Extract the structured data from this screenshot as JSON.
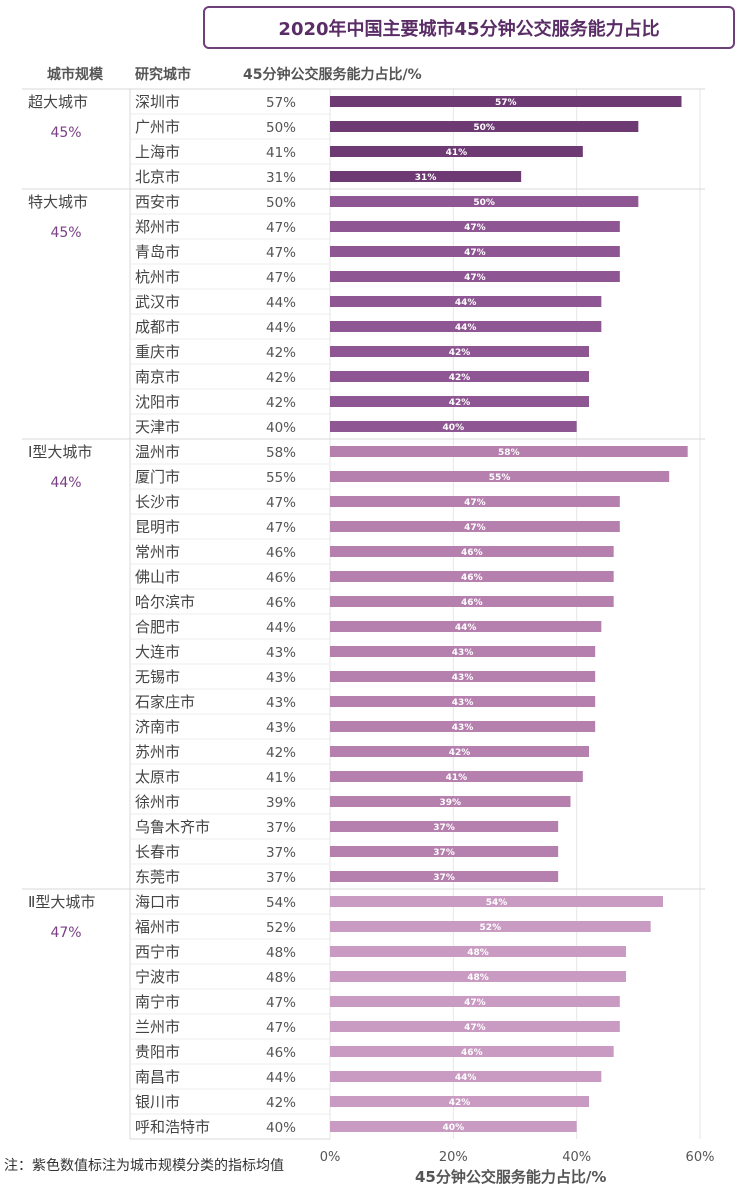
{
  "chart_data": {
    "type": "bar",
    "orientation": "horizontal",
    "title": "2020年中国主要城市45分钟公交服务能力占比",
    "column_headers": {
      "group": "城市规模",
      "city": "研究城市",
      "value": "45分钟公交服务能力占比/%"
    },
    "xlabel": "45分钟公交服务能力占比/%",
    "xlim": [
      0,
      60
    ],
    "xticks": [
      "0%",
      "20%",
      "40%",
      "60%"
    ],
    "groups": [
      {
        "name": "超大城市",
        "avg": "45%",
        "color": "#6d3a73",
        "rows": [
          {
            "city": "深圳市",
            "value": 57,
            "label": "57%"
          },
          {
            "city": "广州市",
            "value": 50,
            "label": "50%"
          },
          {
            "city": "上海市",
            "value": 41,
            "label": "41%"
          },
          {
            "city": "北京市",
            "value": 31,
            "label": "31%"
          }
        ]
      },
      {
        "name": "特大城市",
        "avg": "45%",
        "color": "#8e5692",
        "rows": [
          {
            "city": "西安市",
            "value": 50,
            "label": "50%"
          },
          {
            "city": "郑州市",
            "value": 47,
            "label": "47%"
          },
          {
            "city": "青岛市",
            "value": 47,
            "label": "47%"
          },
          {
            "city": "杭州市",
            "value": 47,
            "label": "47%"
          },
          {
            "city": "武汉市",
            "value": 44,
            "label": "44%"
          },
          {
            "city": "成都市",
            "value": 44,
            "label": "44%"
          },
          {
            "city": "重庆市",
            "value": 42,
            "label": "42%"
          },
          {
            "city": "南京市",
            "value": 42,
            "label": "42%"
          },
          {
            "city": "沈阳市",
            "value": 42,
            "label": "42%"
          },
          {
            "city": "天津市",
            "value": 40,
            "label": "40%"
          }
        ]
      },
      {
        "name": "Ⅰ型大城市",
        "avg": "44%",
        "color": "#b57fae",
        "rows": [
          {
            "city": "温州市",
            "value": 58,
            "label": "58%"
          },
          {
            "city": "厦门市",
            "value": 55,
            "label": "55%"
          },
          {
            "city": "长沙市",
            "value": 47,
            "label": "47%"
          },
          {
            "city": "昆明市",
            "value": 47,
            "label": "47%"
          },
          {
            "city": "常州市",
            "value": 46,
            "label": "46%"
          },
          {
            "city": "佛山市",
            "value": 46,
            "label": "46%"
          },
          {
            "city": "哈尔滨市",
            "value": 46,
            "label": "46%"
          },
          {
            "city": "合肥市",
            "value": 44,
            "label": "44%"
          },
          {
            "city": "大连市",
            "value": 43,
            "label": "43%"
          },
          {
            "city": "无锡市",
            "value": 43,
            "label": "43%"
          },
          {
            "city": "石家庄市",
            "value": 43,
            "label": "43%"
          },
          {
            "city": "济南市",
            "value": 43,
            "label": "43%"
          },
          {
            "city": "苏州市",
            "value": 42,
            "label": "42%"
          },
          {
            "city": "太原市",
            "value": 41,
            "label": "41%"
          },
          {
            "city": "徐州市",
            "value": 39,
            "label": "39%"
          },
          {
            "city": "乌鲁木齐市",
            "value": 37,
            "label": "37%"
          },
          {
            "city": "长春市",
            "value": 37,
            "label": "37%"
          },
          {
            "city": "东莞市",
            "value": 37,
            "label": "37%"
          }
        ]
      },
      {
        "name": "Ⅱ型大城市",
        "avg": "47%",
        "color": "#c99bc2",
        "rows": [
          {
            "city": "海口市",
            "value": 54,
            "label": "54%"
          },
          {
            "city": "福州市",
            "value": 52,
            "label": "52%"
          },
          {
            "city": "西宁市",
            "value": 48,
            "label": "48%"
          },
          {
            "city": "宁波市",
            "value": 48,
            "label": "48%"
          },
          {
            "city": "南宁市",
            "value": 47,
            "label": "47%"
          },
          {
            "city": "兰州市",
            "value": 47,
            "label": "47%"
          },
          {
            "city": "贵阳市",
            "value": 46,
            "label": "46%"
          },
          {
            "city": "南昌市",
            "value": 44,
            "label": "44%"
          },
          {
            "city": "银川市",
            "value": 42,
            "label": "42%"
          },
          {
            "city": "呼和浩特市",
            "value": 40,
            "label": "40%"
          }
        ]
      }
    ],
    "note": "注：紫色数值标注为城市规模分类的指标均值"
  },
  "colors": {
    "title_border": "#6e3f78",
    "title_text": "#5a2d66",
    "avg_text": "#7a3f86",
    "grid": "#e6e6e6",
    "separator": "#d8d8d8"
  }
}
